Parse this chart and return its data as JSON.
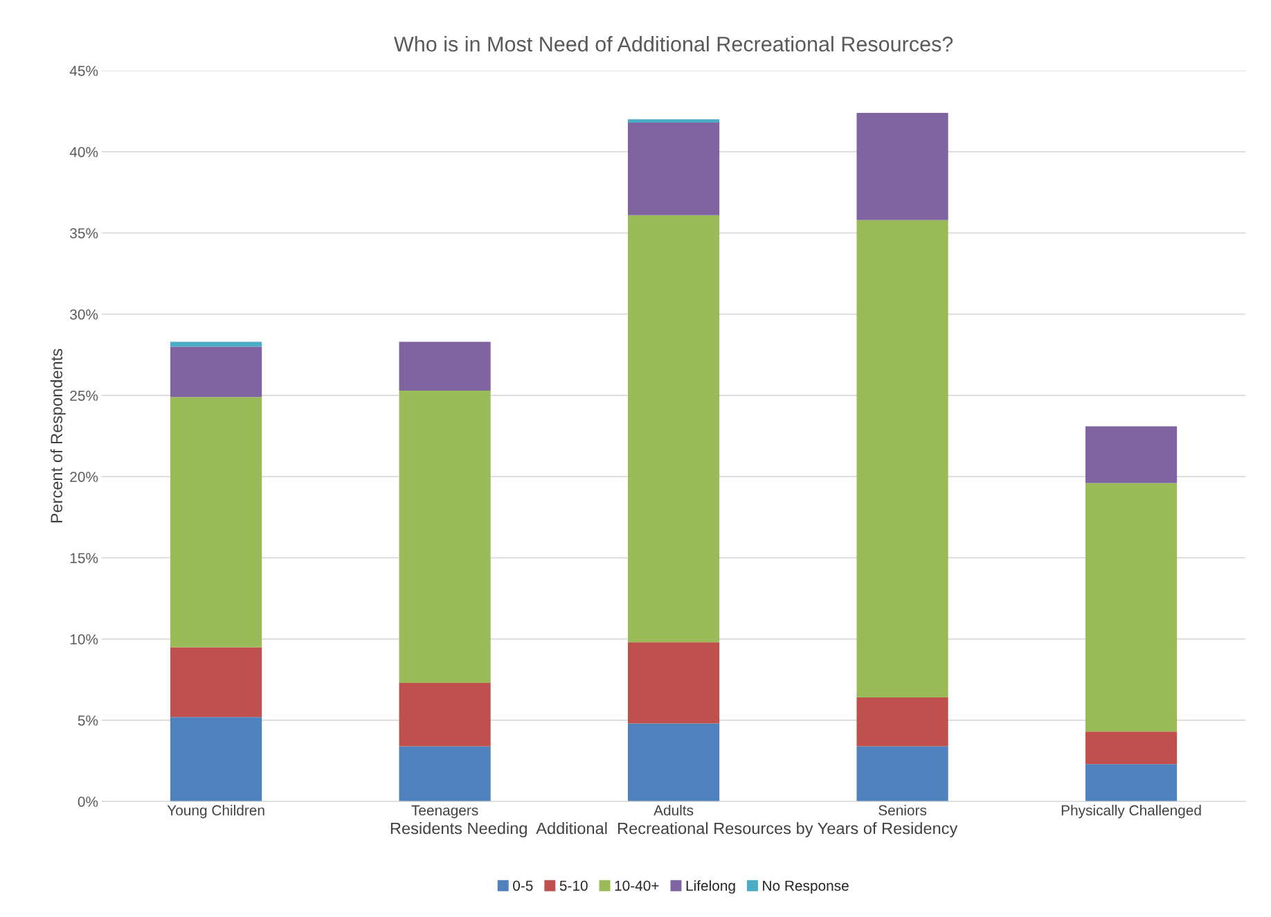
{
  "chart_data": {
    "type": "bar",
    "stacked": true,
    "title": "Who is in Most Need of Additional Recreational Resources?",
    "xlabel": "Residents Needing  Additional  Recreational Resources by Years of Residency",
    "ylabel": "Percent of Respondents",
    "categories": [
      "Young Children",
      "Teenagers",
      "Adults",
      "Seniors",
      "Physically Challenged"
    ],
    "series": [
      {
        "name": "0-5",
        "color": "#4f81bd",
        "values": [
          5.2,
          3.4,
          4.8,
          3.4,
          2.3
        ]
      },
      {
        "name": "5-10",
        "color": "#c0504d",
        "values": [
          4.3,
          3.9,
          5.0,
          3.0,
          2.0
        ]
      },
      {
        "name": "10-40+",
        "color": "#9bbb59",
        "values": [
          15.4,
          18.0,
          26.3,
          29.4,
          15.3
        ]
      },
      {
        "name": "Lifelong",
        "color": "#8064a2",
        "values": [
          3.1,
          3.0,
          5.7,
          6.6,
          3.5
        ]
      },
      {
        "name": "No Response",
        "color": "#4bacc6",
        "values": [
          0.3,
          null,
          0.2,
          null,
          null
        ]
      }
    ],
    "ylim": [
      0,
      45
    ],
    "yticks": [
      {
        "value": 0,
        "label": "0%"
      },
      {
        "value": 5,
        "label": "5%"
      },
      {
        "value": 10,
        "label": "10%"
      },
      {
        "value": 15,
        "label": "15%"
      },
      {
        "value": 20,
        "label": "20%"
      },
      {
        "value": 25,
        "label": "25%"
      },
      {
        "value": 30,
        "label": "30%"
      },
      {
        "value": 35,
        "label": "35%"
      },
      {
        "value": 40,
        "label": "40%"
      },
      {
        "value": 45,
        "label": "45%"
      }
    ],
    "grid": "y",
    "legend": "bottom"
  }
}
